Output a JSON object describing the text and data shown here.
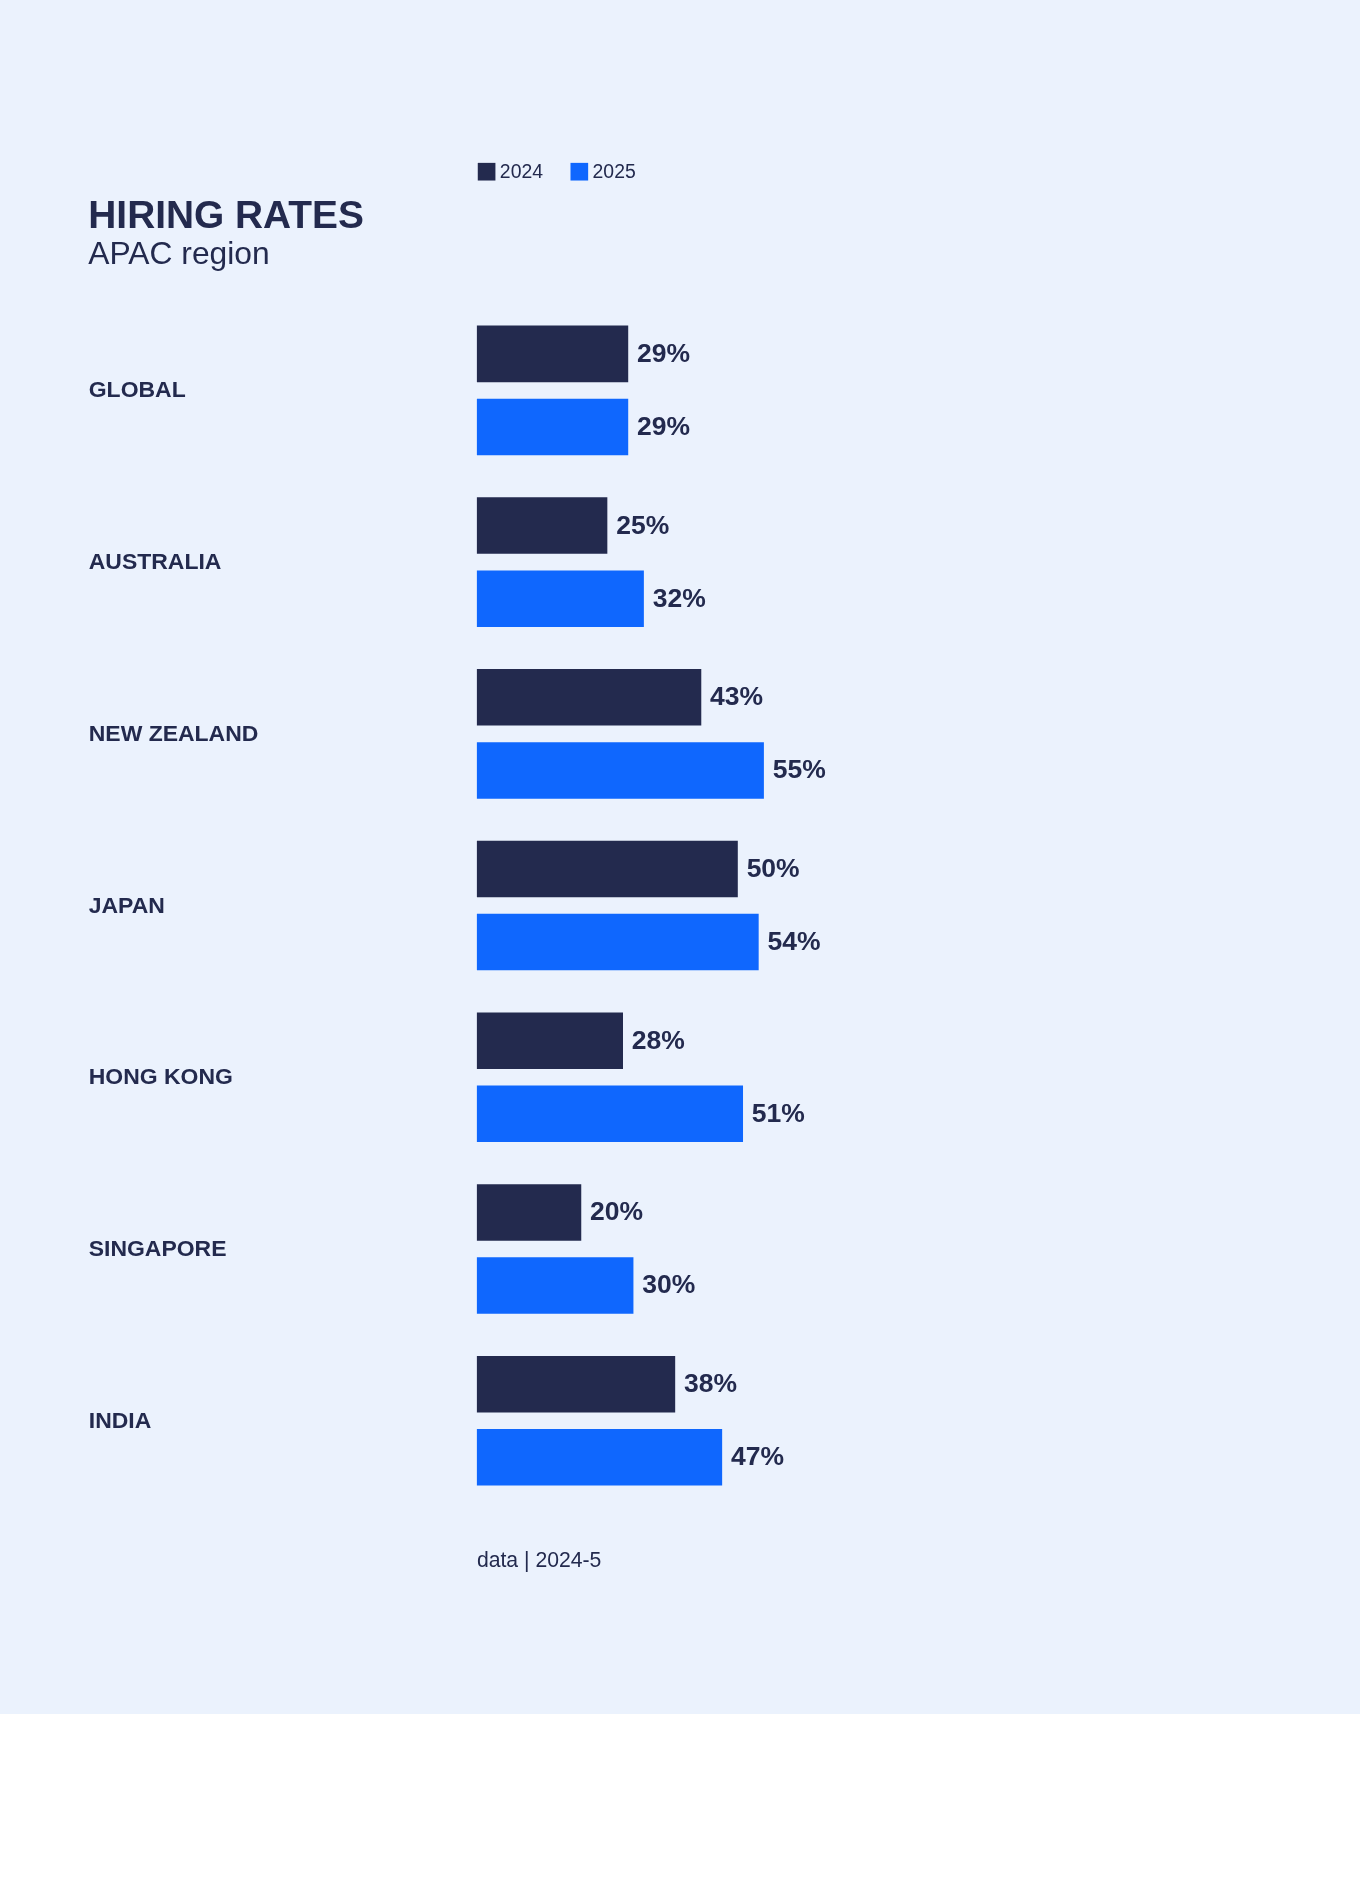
{
  "chart_data": {
    "type": "bar",
    "orientation": "horizontal",
    "title": "HIRING RATES",
    "subtitle": "APAC region",
    "categories": [
      "GLOBAL",
      "AUSTRALIA",
      "NEW ZEALAND",
      "JAPAN",
      "HONG KONG",
      "SINGAPORE",
      "INDIA"
    ],
    "series": [
      {
        "name": "2024",
        "color": "#232a4e",
        "values": [
          29,
          25,
          43,
          50,
          28,
          20,
          38
        ],
        "value_labels": [
          "29%",
          "25%",
          "43%",
          "50%",
          "28%",
          "20%",
          "38%"
        ]
      },
      {
        "name": "2025",
        "color": "#0f67fe",
        "values": [
          29,
          32,
          55,
          54,
          51,
          30,
          47
        ],
        "value_labels": [
          "29%",
          "32%",
          "55%",
          "54%",
          "51%",
          "30%",
          "47%"
        ]
      }
    ],
    "legend": "top left",
    "grid": false,
    "tick_labels": "y",
    "annotations": [
      "data | 2024-5"
    ]
  }
}
